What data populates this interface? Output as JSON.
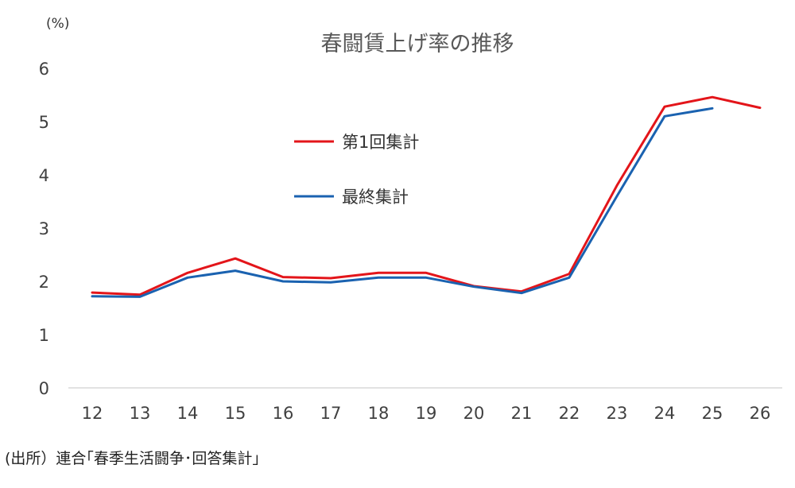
{
  "chart_data": {
    "type": "line",
    "title": "春闘賃上げ率の推移",
    "unit_label": "(%)",
    "xlabel": "",
    "ylabel": "",
    "categories": [
      "12",
      "13",
      "14",
      "15",
      "16",
      "17",
      "18",
      "19",
      "20",
      "21",
      "22",
      "23",
      "24",
      "25",
      "26"
    ],
    "ylim": [
      0,
      6
    ],
    "yticks": [
      "0",
      "1",
      "2",
      "3",
      "4",
      "5",
      "6"
    ],
    "grid": false,
    "legend_position": "center-left",
    "series": [
      {
        "name": "第1回集計",
        "color": "#e3151a",
        "values": [
          1.79,
          1.75,
          2.16,
          2.43,
          2.08,
          2.06,
          2.16,
          2.16,
          1.91,
          1.81,
          2.14,
          3.8,
          5.28,
          5.46,
          5.26
        ]
      },
      {
        "name": "最終集計",
        "color": "#1a62b0",
        "values": [
          1.72,
          1.71,
          2.07,
          2.2,
          2.0,
          1.98,
          2.07,
          2.07,
          1.9,
          1.78,
          2.07,
          3.6,
          5.1,
          5.25,
          null
        ]
      }
    ],
    "source_note": "(出所）連合｢春季生活闘争･回答集計｣"
  }
}
